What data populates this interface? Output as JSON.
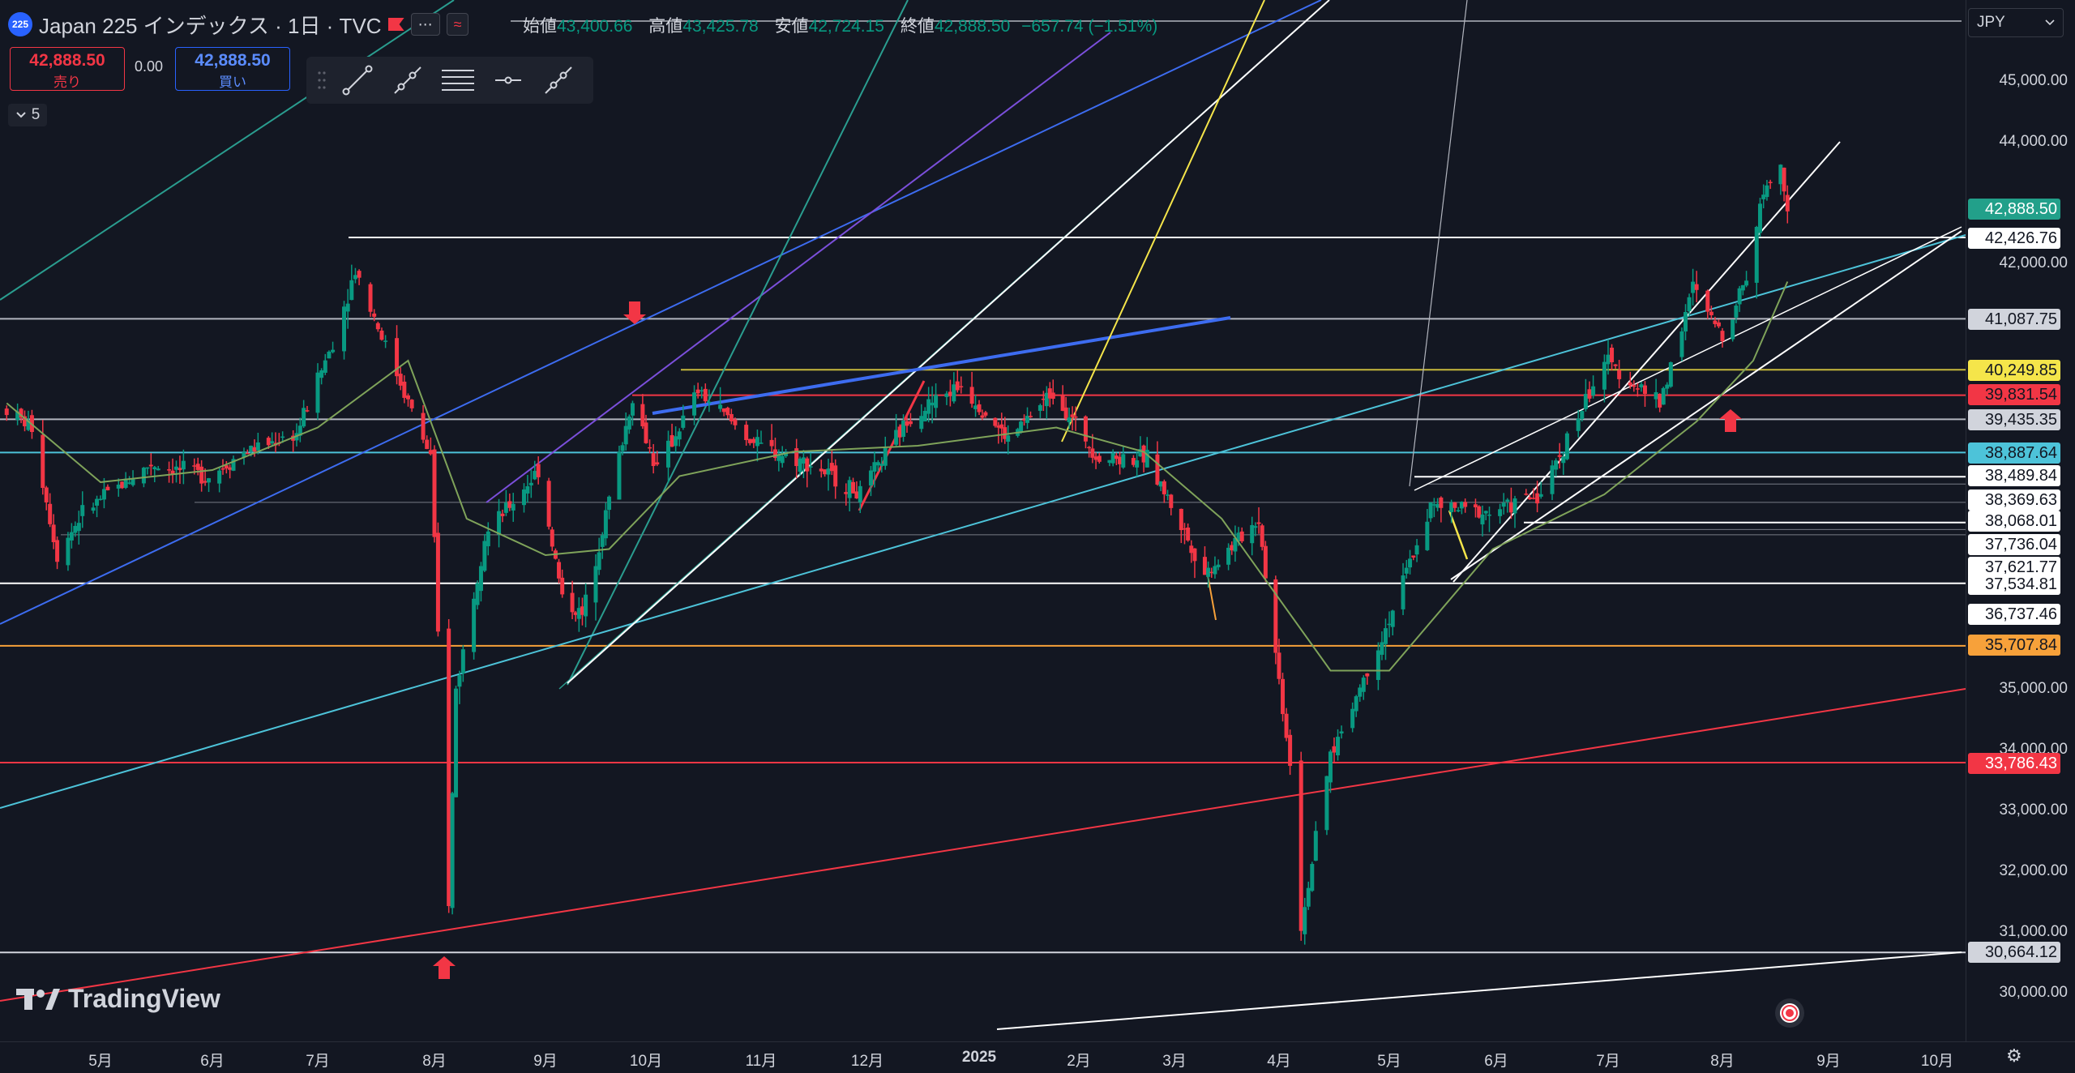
{
  "header": {
    "symbol_badge": "225",
    "title": "Japan 225 インデックス · 1日 · TVC",
    "more_label": "⋯",
    "indicator_label": "≈"
  },
  "ohlc": {
    "open_label": "始値",
    "open": "43,400.66",
    "high_label": "高値",
    "high": "43,425.78",
    "low_label": "安値",
    "low": "42,724.15",
    "close_label": "終値",
    "close": "42,888.50",
    "change": "−657.74 (−1.51%)"
  },
  "trade": {
    "sell_price": "42,888.50",
    "sell_label": "売り",
    "spread": "0.00",
    "buy_price": "42,888.50",
    "buy_label": "買い"
  },
  "indicators_collapsed": {
    "count": "5"
  },
  "drawing_toolbar": {
    "tools": [
      "trend-line-icon",
      "ray-icon",
      "parallel-channel-icon",
      "horizontal-line-icon",
      "extended-line-icon"
    ]
  },
  "currency": {
    "value": "JPY"
  },
  "price_axis": {
    "ticks": [
      "45,000.00",
      "44,000.00",
      "42,000.00",
      "35,000.00",
      "34,000.00",
      "33,000.00",
      "32,000.00",
      "31,000.00",
      "30,000.00"
    ]
  },
  "price_labels": [
    {
      "text": "42,888.50",
      "bg": "#22a08a",
      "fg": "#ffffff",
      "line": "#089981"
    },
    {
      "text": "42,426.76",
      "bg": "#ffffff",
      "fg": "#131722",
      "line": "#ffffff"
    },
    {
      "text": "41,087.75",
      "bg": "#d1d4dc",
      "fg": "#131722",
      "line": "#b2b5be"
    },
    {
      "text": "40,249.85",
      "bg": "#f5e54a",
      "fg": "#131722",
      "line": "#c8b93c"
    },
    {
      "text": "39,831.54",
      "bg": "#f23645",
      "fg": "#131722",
      "line": "#f23645"
    },
    {
      "text": "39,435.35",
      "bg": "#d1d4dc",
      "fg": "#131722",
      "line": "#b2b5be"
    },
    {
      "text": "38,887.64",
      "bg": "#4dc3d9",
      "fg": "#131722",
      "line": "#4dc3d9"
    },
    {
      "text": "38,489.84",
      "bg": "#ffffff",
      "fg": "#131722",
      "line": "#ffffff"
    },
    {
      "text": "38,369.63",
      "bg": "#ffffff",
      "fg": "#131722",
      "line": "#787b86"
    },
    {
      "text": "38,068.01",
      "bg": "#ffffff",
      "fg": "#131722",
      "line": "#787b86"
    },
    {
      "text": "37,736.04",
      "bg": "#ffffff",
      "fg": "#131722",
      "line": "#ffffff"
    },
    {
      "text": "37,621.77",
      "bg": "#ffffff",
      "fg": "#131722",
      "line": "#787b86"
    },
    {
      "text": "37,534.81",
      "bg": "#ffffff",
      "fg": "#131722",
      "line": "#787b86"
    },
    {
      "text": "36,737.46",
      "bg": "#ffffff",
      "fg": "#131722",
      "line": "#ffffff"
    },
    {
      "text": "35,707.84",
      "bg": "#f7a13a",
      "fg": "#131722",
      "line": "#f7a13a"
    },
    {
      "text": "33,786.43",
      "bg": "#f23645",
      "fg": "#ffffff",
      "line": "#f23645"
    },
    {
      "text": "30,664.12",
      "bg": "#d1d4dc",
      "fg": "#131722",
      "line": "#d1d4dc"
    }
  ],
  "time_axis": {
    "ticks": [
      "5月",
      "6月",
      "7月",
      "8月",
      "9月",
      "10月",
      "11月",
      "12月",
      "2025",
      "2月",
      "3月",
      "4月",
      "5月",
      "6月",
      "7月",
      "8月",
      "9月",
      "10月"
    ]
  },
  "logo": {
    "text": "TradingView"
  },
  "colors": {
    "background": "#131722",
    "up": "#089981",
    "down": "#f23645",
    "ma": "#7fa35a"
  },
  "chart_data": {
    "type": "candlestick",
    "title": "Japan 225 インデックス · 1日 · TVC",
    "interval": "1日",
    "y_range": [
      29500,
      46500
    ],
    "x_range": [
      "2024-04-05",
      "2025-10-25"
    ],
    "last_close": 42888.5,
    "price_path": [
      [
        "2024-04-05",
        39600
      ],
      [
        "2024-04-12",
        39300
      ],
      [
        "2024-04-19",
        37200
      ],
      [
        "2024-04-26",
        37900
      ],
      [
        "2024-05-03",
        38200
      ],
      [
        "2024-05-15",
        38700
      ],
      [
        "2024-05-31",
        38500
      ],
      [
        "2024-06-10",
        38900
      ],
      [
        "2024-06-25",
        39200
      ],
      [
        "2024-07-05",
        40700
      ],
      [
        "2024-07-11",
        41900
      ],
      [
        "2024-07-20",
        40500
      ],
      [
        "2024-07-31",
        38800
      ],
      [
        "2024-08-02",
        35900
      ],
      [
        "2024-08-05",
        31500
      ],
      [
        "2024-08-07",
        35000
      ],
      [
        "2024-08-15",
        37500
      ],
      [
        "2024-08-30",
        38600
      ],
      [
        "2024-09-06",
        36500
      ],
      [
        "2024-09-12",
        36200
      ],
      [
        "2024-09-27",
        39800
      ],
      [
        "2024-10-04",
        38600
      ],
      [
        "2024-10-15",
        39900
      ],
      [
        "2024-10-31",
        39000
      ],
      [
        "2024-11-15",
        38700
      ],
      [
        "2024-11-29",
        38200
      ],
      [
        "2024-12-13",
        39500
      ],
      [
        "2024-12-27",
        40000
      ],
      [
        "2025-01-10",
        39100
      ],
      [
        "2025-01-24",
        39900
      ],
      [
        "2025-02-07",
        38800
      ],
      [
        "2025-02-21",
        38800
      ],
      [
        "2025-03-10",
        36900
      ],
      [
        "2025-03-26",
        37800
      ],
      [
        "2025-04-04",
        33800
      ],
      [
        "2025-04-07",
        31100
      ],
      [
        "2025-04-15",
        33900
      ],
      [
        "2025-04-30",
        36000
      ],
      [
        "2025-05-13",
        38000
      ],
      [
        "2025-05-30",
        37900
      ],
      [
        "2025-06-13",
        38200
      ],
      [
        "2025-06-30",
        40400
      ],
      [
        "2025-07-15",
        39700
      ],
      [
        "2025-07-24",
        41600
      ],
      [
        "2025-08-01",
        40800
      ],
      [
        "2025-08-08",
        41800
      ],
      [
        "2025-08-13",
        43200
      ],
      [
        "2025-08-18",
        43700
      ],
      [
        "2025-08-20",
        42888.5
      ]
    ],
    "ma_path": [
      [
        "2024-04-05",
        39700
      ],
      [
        "2024-05-01",
        38400
      ],
      [
        "2024-06-01",
        38600
      ],
      [
        "2024-07-01",
        39300
      ],
      [
        "2024-07-25",
        40400
      ],
      [
        "2024-08-10",
        37800
      ],
      [
        "2024-09-01",
        37200
      ],
      [
        "2024-09-20",
        37300
      ],
      [
        "2024-10-10",
        38500
      ],
      [
        "2024-11-10",
        38900
      ],
      [
        "2024-12-15",
        39000
      ],
      [
        "2025-01-25",
        39300
      ],
      [
        "2025-02-20",
        38900
      ],
      [
        "2025-03-15",
        37800
      ],
      [
        "2025-04-15",
        35300
      ],
      [
        "2025-05-01",
        35300
      ],
      [
        "2025-05-31",
        37300
      ],
      [
        "2025-06-30",
        38200
      ],
      [
        "2025-07-25",
        39400
      ],
      [
        "2025-08-10",
        40400
      ],
      [
        "2025-08-20",
        41700
      ]
    ],
    "horizontal_levels": [
      42426.76,
      41087.75,
      40249.85,
      39831.54,
      39435.35,
      38887.64,
      38489.84,
      38369.63,
      38068.01,
      37736.04,
      37621.77,
      37534.81,
      36737.46,
      35707.84,
      33786.43,
      30664.12
    ],
    "grid": false,
    "legend": "top-left"
  }
}
